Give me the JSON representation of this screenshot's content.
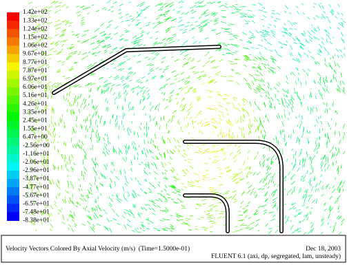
{
  "colorbar": {
    "labels": [
      "1.42e+02",
      "1.33e+02",
      "1.24e+02",
      "1.15e+02",
      "1.06e+02",
      "9.67e+01",
      "8.77e+01",
      "7.87e+01",
      "6.97e+01",
      "6.06e+01",
      "5.16e+01",
      "4.26e+01",
      "3.35e+01",
      "2.45e+01",
      "1.55e+01",
      "6.47e+00",
      "-2.56e+00",
      "-1.16e+01",
      "-2.06e+01",
      "-2.96e+01",
      "-3.87e+01",
      "-4.77e+01",
      "-5.67e+01",
      "-6.57e+01",
      "-7.48e+01",
      "-8.38e+01"
    ]
  },
  "footer": {
    "title": "Velocity Vectors Colored By Axial Velocity (m/s)  (Time=1.5000e-01)",
    "date": "Dec 18, 2003",
    "solver": "FLUENT 6.1 (axi, dp, segregated, lam, unsteady)"
  }
}
